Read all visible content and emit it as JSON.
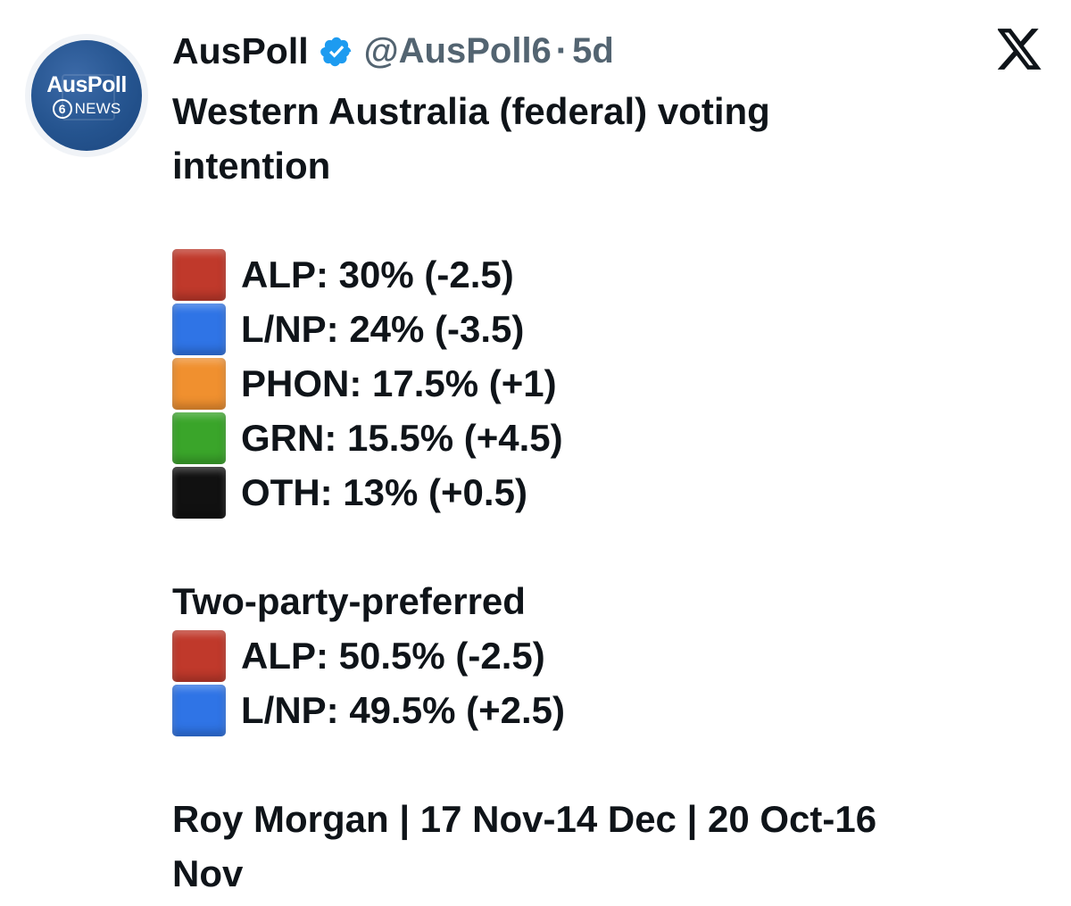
{
  "tweet": {
    "avatar": {
      "name": "AusPoll",
      "sub_number": "6",
      "sub_text": "NEWS"
    },
    "display_name": "AusPoll",
    "handle": "@AusPoll6",
    "separator": "·",
    "time": "5d",
    "verified": true,
    "title_line1": "Western Australia (federal) voting",
    "title_line2": "intention",
    "primary": [
      {
        "label": "ALP: 30% (-2.5)",
        "color": "#c0392b",
        "color_name": "red"
      },
      {
        "label": "L/NP: 24% (-3.5)",
        "color": "#2f74e6",
        "color_name": "blue"
      },
      {
        "label": "PHON: 17.5% (+1)",
        "color": "#f0902f",
        "color_name": "orange"
      },
      {
        "label": "GRN: 15.5% (+4.5)",
        "color": "#3aa52a",
        "color_name": "green"
      },
      {
        "label": "OTH: 13% (+0.5)",
        "color": "#111111",
        "color_name": "black"
      }
    ],
    "tpp_heading": "Two-party-preferred",
    "tpp": [
      {
        "label": "ALP: 50.5% (-2.5)",
        "color": "#c0392b",
        "color_name": "red"
      },
      {
        "label": "L/NP: 49.5% (+2.5)",
        "color": "#2f74e6",
        "color_name": "blue"
      }
    ],
    "source_line1": "Roy Morgan | 17 Nov-14 Dec | 20 Oct-16",
    "source_line2": "Nov"
  },
  "colors": {
    "verified_badge": "#1d9bf0",
    "muted_text": "#536471",
    "avatar_bg": "#25548f"
  },
  "icons": {
    "verified": "verified-badge-icon",
    "platform": "x-logo-icon"
  }
}
